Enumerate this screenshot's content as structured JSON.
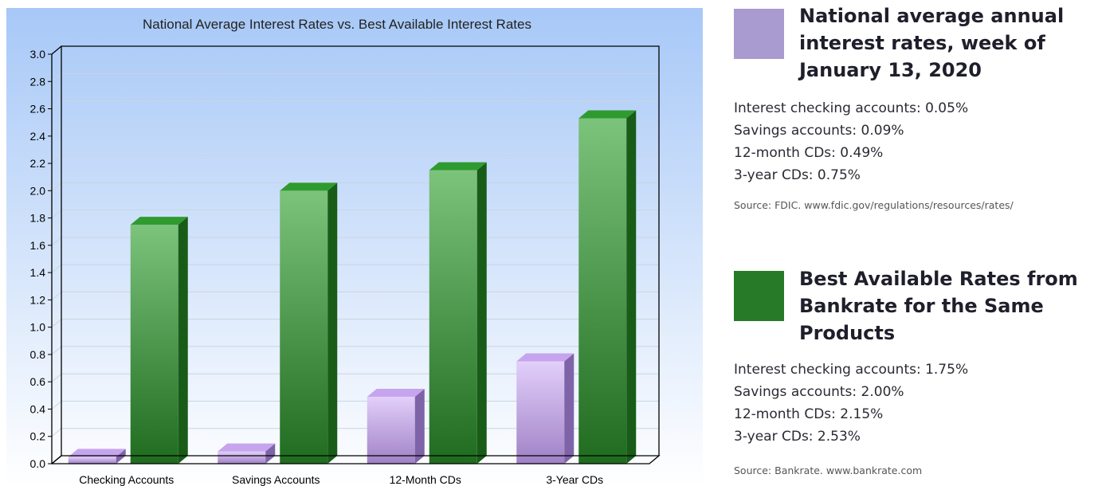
{
  "chart_data": {
    "type": "bar",
    "title": "National Average Interest Rates vs. Best Available Interest Rates",
    "categories": [
      "Checking Accounts",
      "Savings Accounts",
      "12-Month CDs",
      "3-Year CDs"
    ],
    "series": [
      {
        "values": [
          0.05,
          0.09,
          0.49,
          0.75
        ],
        "color": "#a99ad0"
      },
      {
        "values": [
          1.75,
          2.0,
          2.15,
          2.53
        ],
        "color": "#2a7e2a"
      }
    ],
    "yticks": [
      "0.0",
      "0.2",
      "0.4",
      "0.6",
      "0.8",
      "1.0",
      "1.2",
      "1.4",
      "1.6",
      "1.8",
      "2.0",
      "2.2",
      "2.4",
      "2.6",
      "2.8",
      "3.0"
    ],
    "ylim": [
      0,
      3.0
    ],
    "grid": true,
    "legend": "right"
  },
  "legend": {
    "national": {
      "title": "National average annual interest rates, week of January 13, 2020",
      "items": [
        "Interest checking accounts: 0.05%",
        "Savings accounts: 0.09%",
        "12-month CDs: 0.49%",
        "3-year CDs: 0.75%"
      ],
      "source": "Source: FDIC. www.fdic.gov/regulations/resources/rates/",
      "color": "#a99ad0"
    },
    "best": {
      "title": "Best Available Rates from Bankrate for the Same Products",
      "items": [
        "Interest checking accounts: 1.75%",
        "Savings accounts: 2.00%",
        "12-month CDs: 2.15%",
        "3-year CDs: 2.53%"
      ],
      "source": "Source: Bankrate. www.bankrate.com",
      "color": "#277a27"
    }
  }
}
